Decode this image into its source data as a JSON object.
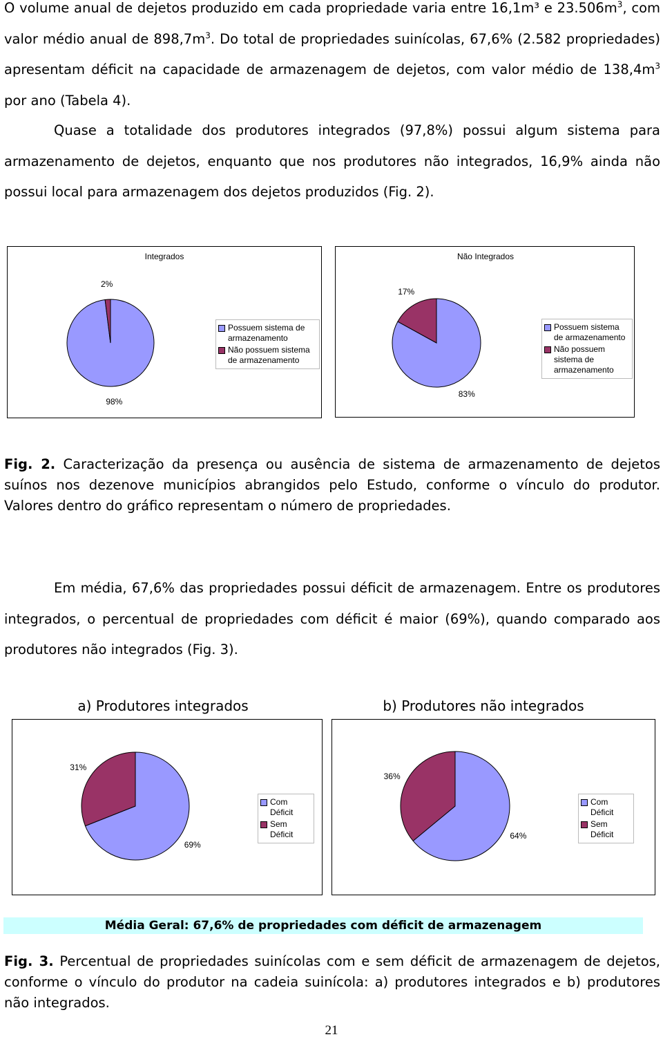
{
  "paragraph_1": [
    "O volume anual de dejetos produzido em cada propriedade varia entre 16,1m³ e 23.506m",
    "3",
    ", com valor médio anual de 898,7m",
    "3",
    ". Do total de propriedades suinícolas, 67,6% (2.582 propriedades) apresentam déficit na capacidade de armazenagem de dejetos, com valor médio de 138,4m",
    "3",
    " por ano (Tabela 4)."
  ],
  "paragraph_2": "Quase a totalidade dos produtores integrados (97,8%) possui algum sistema para armazenamento de dejetos, enquanto que nos produtores não integrados, 16,9% ainda não possui local para armazenagem dos dejetos produzidos (Fig. 2).",
  "figure_2_caption": {
    "label": "Fig. 2.",
    "text": "Caracterização da presença ou ausência de sistema de armazenamento de dejetos suínos nos dezenove municípios abrangidos pelo Estudo, conforme o vínculo do produtor. Valores dentro do gráfico representam o número de propriedades."
  },
  "paragraph_3": "Em média, 67,6% das propriedades possui déficit de armazenagem. Entre os produtores integrados,  o percentual de propriedades com déficit é maior (69%), quando comparado aos produtores não integrados (Fig. 3).",
  "chart_data": [
    {
      "type": "pie",
      "title": "Integrados",
      "categories": [
        "Possuem sistema de armazenamento",
        "Não possuem sistema de armazenamento"
      ],
      "values": [
        98,
        2
      ],
      "value_labels": [
        "98%",
        "2%"
      ],
      "colors": [
        "#9999ff",
        "#993366"
      ]
    },
    {
      "type": "pie",
      "title": "Não Integrados",
      "categories": [
        "Possuem sistema de armazenamento",
        "Não possuem sistema de armazenamento"
      ],
      "values": [
        83,
        17
      ],
      "value_labels": [
        "83%",
        "17%"
      ],
      "colors": [
        "#9999ff",
        "#993366"
      ]
    },
    {
      "type": "pie",
      "title": "a) Produtores integrados",
      "categories": [
        "Com Déficit",
        "Sem Déficit"
      ],
      "values": [
        69,
        31
      ],
      "value_labels": [
        "69%",
        "31%"
      ],
      "colors": [
        "#9999ff",
        "#993366"
      ]
    },
    {
      "type": "pie",
      "title": "b) Produtores não integrados",
      "categories": [
        "Com Déficit",
        "Sem Déficit"
      ],
      "values": [
        64,
        36
      ],
      "value_labels": [
        "64%",
        "36%"
      ],
      "colors": [
        "#9999ff",
        "#993366"
      ]
    }
  ],
  "banner": "Média Geral: 67,6% de propriedades com déficit de armazenagem",
  "figure_3_caption": {
    "label": "Fig. 3.",
    "text": "Percentual de propriedades suinícolas com e sem déficit de armazenagem de dejetos, conforme o vínculo do produtor na cadeia suinícola: a) produtores integrados e b) produtores não integrados."
  },
  "page_number": "21"
}
